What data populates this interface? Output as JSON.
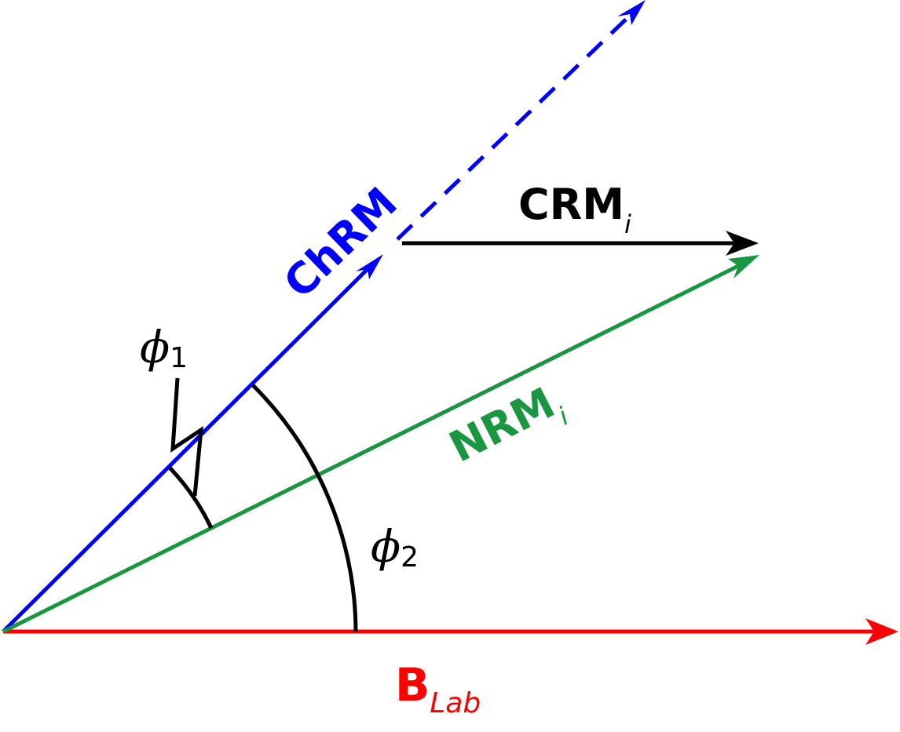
{
  "colors": {
    "b_lab": "#ff0000",
    "chrm": "#0000ff",
    "nrm": "#1a9641",
    "crm": "#000000"
  },
  "vectors": {
    "b_lab": {
      "main": "B",
      "sub": "Lab"
    },
    "chrm": {
      "main": "ChRM"
    },
    "nrm": {
      "main": "NRM",
      "sub": "i"
    },
    "crm": {
      "main": "CRM",
      "sub": "i"
    }
  },
  "angles": {
    "phi1": {
      "symbol": "ϕ",
      "sub": "1"
    },
    "phi2": {
      "symbol": "ϕ",
      "sub": "2"
    }
  }
}
